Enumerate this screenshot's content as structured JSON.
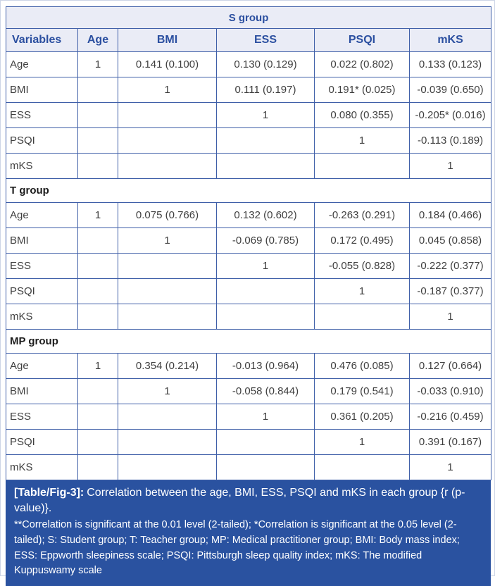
{
  "colors": {
    "header_bg": "#eaecf6",
    "border": "#3f5fa8",
    "header_text": "#2b4fa0",
    "body_text": "#3f3f3f",
    "section_text": "#1c1c1c",
    "footer_bg": "#2a52a0",
    "footer_text": "#ffffff",
    "page_border": "#ccd5e6"
  },
  "table": {
    "columns": [
      "Variables",
      "Age",
      "BMI",
      "ESS",
      "PSQI",
      "mKS"
    ],
    "sections": [
      {
        "name": "S group",
        "rows": [
          {
            "label": "Age",
            "cells": [
              "1",
              "0.141 (0.100)",
              "0.130 (0.129)",
              "0.022 (0.802)",
              "0.133 (0.123)"
            ]
          },
          {
            "label": "BMI",
            "cells": [
              "",
              "1",
              "0.111 (0.197)",
              "0.191* (0.025)",
              "-0.039 (0.650)"
            ]
          },
          {
            "label": "ESS",
            "cells": [
              "",
              "",
              "1",
              "0.080 (0.355)",
              "-0.205* (0.016)"
            ]
          },
          {
            "label": "PSQI",
            "cells": [
              "",
              "",
              "",
              "1",
              "-0.113 (0.189)"
            ]
          },
          {
            "label": "mKS",
            "cells": [
              "",
              "",
              "",
              "",
              "1"
            ]
          }
        ]
      },
      {
        "name": "T group",
        "rows": [
          {
            "label": "Age",
            "cells": [
              "1",
              "0.075 (0.766)",
              "0.132 (0.602)",
              "-0.263 (0.291)",
              "0.184 (0.466)"
            ]
          },
          {
            "label": "BMI",
            "cells": [
              "",
              "1",
              "-0.069 (0.785)",
              "0.172 (0.495)",
              "0.045 (0.858)"
            ]
          },
          {
            "label": "ESS",
            "cells": [
              "",
              "",
              "1",
              "-0.055 (0.828)",
              "-0.222 (0.377)"
            ]
          },
          {
            "label": "PSQI",
            "cells": [
              "",
              "",
              "",
              "1",
              "-0.187 (0.377)"
            ]
          },
          {
            "label": "mKS",
            "cells": [
              "",
              "",
              "",
              "",
              "1"
            ]
          }
        ]
      },
      {
        "name": "MP group",
        "rows": [
          {
            "label": "Age",
            "cells": [
              "1",
              "0.354 (0.214)",
              "-0.013 (0.964)",
              "0.476 (0.085)",
              "0.127 (0.664)"
            ]
          },
          {
            "label": "BMI",
            "cells": [
              "",
              "1",
              "-0.058 (0.844)",
              "0.179 (0.541)",
              "-0.033 (0.910)"
            ]
          },
          {
            "label": "ESS",
            "cells": [
              "",
              "",
              "1",
              "0.361 (0.205)",
              "-0.216 (0.459)"
            ]
          },
          {
            "label": "PSQI",
            "cells": [
              "",
              "",
              "",
              "1",
              "0.391 (0.167)"
            ]
          },
          {
            "label": "mKS",
            "cells": [
              "",
              "",
              "",
              "",
              "1"
            ]
          }
        ]
      }
    ]
  },
  "caption": {
    "label": "[Table/Fig-3]:",
    "text": "Correlation between the age, BMI, ESS, PSQI and mKS in each group {r (p-value)}.",
    "footnote": "**Correlation is significant at the 0.01 level (2-tailed); *Correlation is significant at the 0.05 level (2-tailed); S: Student group; T: Teacher group; MP: Medical practitioner group; BMI: Body mass index; ESS: Eppworth sleepiness scale; PSQI: Pittsburgh sleep quality index; mKS: The modified Kuppuswamy scale"
  }
}
